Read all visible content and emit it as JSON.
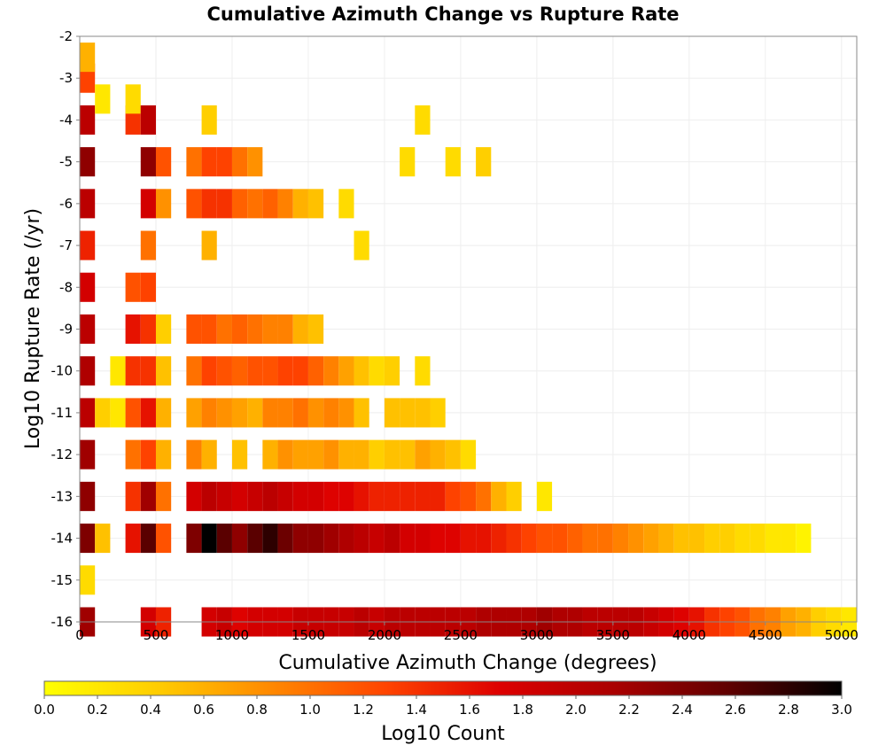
{
  "chart_data": {
    "type": "heatmap",
    "title": "Cumulative Azimuth Change vs Rupture Rate",
    "xlabel": "Cumulative Azimuth Change (degrees)",
    "ylabel": "Log10 Rupture Rate (/yr)",
    "xlim": [
      0,
      5100
    ],
    "ylim": [
      -16,
      -2
    ],
    "x_ticks": [
      "0",
      "500",
      "1000",
      "1500",
      "2000",
      "2500",
      "3000",
      "3500",
      "4000",
      "4500",
      "5000"
    ],
    "y_ticks": [
      "-2",
      "-3",
      "-4",
      "-5",
      "-6",
      "-7",
      "-8",
      "-9",
      "-10",
      "-11",
      "-12",
      "-13",
      "-14",
      "-15",
      "-16"
    ],
    "grid": true,
    "colorbar": {
      "label": "Log10 Count",
      "range": [
        0.0,
        3.0
      ],
      "ticks": [
        "0.0",
        "0.2",
        "0.4",
        "0.6",
        "0.8",
        "1.0",
        "1.2",
        "1.4",
        "1.6",
        "1.8",
        "2.0",
        "2.2",
        "2.4",
        "2.6",
        "2.8",
        "3.0"
      ],
      "colors": [
        "#ffff00",
        "#ffcc00",
        "#ff8800",
        "#ff4400",
        "#dd0000",
        "#aa0000",
        "#600000",
        "#000000"
      ]
    },
    "cells": [
      [
        0,
        -14,
        2.4
      ],
      [
        0,
        -13,
        2.3
      ],
      [
        0,
        -12,
        2.2
      ],
      [
        0,
        -11,
        2.0
      ],
      [
        0,
        -10,
        2.1
      ],
      [
        0,
        -9,
        2.0
      ],
      [
        0,
        -8,
        1.8
      ],
      [
        0,
        -7,
        1.5
      ],
      [
        0,
        -6,
        2.0
      ],
      [
        0,
        -5,
        2.3
      ],
      [
        0,
        -4,
        2.0
      ],
      [
        0,
        -3,
        1.3
      ],
      [
        0,
        -2.5,
        0.6
      ],
      [
        0,
        -16,
        2.2
      ],
      [
        0,
        -15,
        0.3
      ],
      [
        100,
        -14,
        0.5
      ],
      [
        100,
        -11,
        0.4
      ],
      [
        100,
        -3.5,
        0.2
      ],
      [
        200,
        -10,
        0.2
      ],
      [
        200,
        -11,
        0.2
      ],
      [
        300,
        -14,
        1.6
      ],
      [
        300,
        -13,
        1.4
      ],
      [
        300,
        -12,
        1.0
      ],
      [
        300,
        -11,
        1.2
      ],
      [
        300,
        -10,
        1.4
      ],
      [
        300,
        -9,
        1.6
      ],
      [
        300,
        -8,
        1.2
      ],
      [
        300,
        -4,
        1.4
      ],
      [
        300,
        -3.5,
        0.3
      ],
      [
        400,
        -14,
        2.6
      ],
      [
        400,
        -13,
        2.2
      ],
      [
        400,
        -12,
        1.3
      ],
      [
        400,
        -11,
        1.6
      ],
      [
        400,
        -10,
        1.4
      ],
      [
        400,
        -9,
        1.4
      ],
      [
        400,
        -8,
        1.3
      ],
      [
        400,
        -7,
        1.0
      ],
      [
        400,
        -6,
        1.8
      ],
      [
        400,
        -5,
        2.3
      ],
      [
        400,
        -4,
        2.0
      ],
      [
        400,
        -16,
        1.8
      ],
      [
        500,
        -14,
        1.2
      ],
      [
        500,
        -13,
        1.0
      ],
      [
        500,
        -12,
        0.6
      ],
      [
        500,
        -11,
        0.6
      ],
      [
        500,
        -10,
        0.5
      ],
      [
        500,
        -9,
        0.4
      ],
      [
        500,
        -6,
        0.8
      ],
      [
        500,
        -5,
        1.2
      ],
      [
        500,
        -16,
        1.5
      ],
      [
        700,
        -14,
        2.4
      ],
      [
        700,
        -13,
        1.8
      ],
      [
        700,
        -12,
        0.9
      ],
      [
        700,
        -11,
        0.7
      ],
      [
        700,
        -10,
        1.0
      ],
      [
        700,
        -9,
        1.2
      ],
      [
        700,
        -6,
        1.2
      ],
      [
        700,
        -5,
        1.0
      ],
      [
        800,
        -14,
        3.0
      ],
      [
        800,
        -13,
        2.0
      ],
      [
        800,
        -12,
        0.6
      ],
      [
        800,
        -11,
        0.9
      ],
      [
        800,
        -10,
        1.3
      ],
      [
        800,
        -9,
        1.2
      ],
      [
        800,
        -7,
        0.6
      ],
      [
        800,
        -6,
        1.4
      ],
      [
        800,
        -5,
        1.3
      ],
      [
        800,
        -4,
        0.4
      ],
      [
        800,
        -16,
        1.8
      ],
      [
        900,
        -14,
        2.6
      ],
      [
        900,
        -13,
        1.9
      ],
      [
        900,
        -11,
        0.8
      ],
      [
        900,
        -10,
        1.2
      ],
      [
        900,
        -9,
        1.0
      ],
      [
        900,
        -6,
        1.4
      ],
      [
        900,
        -5,
        1.3
      ],
      [
        900,
        -16,
        1.9
      ],
      [
        1000,
        -14,
        2.3
      ],
      [
        1000,
        -13,
        1.8
      ],
      [
        1000,
        -12,
        0.5
      ],
      [
        1000,
        -11,
        0.7
      ],
      [
        1000,
        -10,
        1.1
      ],
      [
        1000,
        -9,
        1.1
      ],
      [
        1000,
        -6,
        1.1
      ],
      [
        1000,
        -5,
        1.0
      ],
      [
        1000,
        -16,
        1.7
      ],
      [
        1100,
        -14,
        2.6
      ],
      [
        1100,
        -13,
        1.9
      ],
      [
        1100,
        -11,
        0.6
      ],
      [
        1100,
        -10,
        1.2
      ],
      [
        1100,
        -9,
        1.0
      ],
      [
        1100,
        -6,
        1.0
      ],
      [
        1100,
        -5,
        0.8
      ],
      [
        1100,
        -16,
        1.8
      ],
      [
        1200,
        -14,
        2.8
      ],
      [
        1200,
        -13,
        2.0
      ],
      [
        1200,
        -12,
        0.6
      ],
      [
        1200,
        -11,
        0.9
      ],
      [
        1200,
        -10,
        1.2
      ],
      [
        1200,
        -9,
        0.9
      ],
      [
        1200,
        -6,
        1.1
      ],
      [
        1200,
        -16,
        1.8
      ],
      [
        1300,
        -14,
        2.5
      ],
      [
        1300,
        -13,
        1.9
      ],
      [
        1300,
        -12,
        0.8
      ],
      [
        1300,
        -11,
        0.9
      ],
      [
        1300,
        -10,
        1.3
      ],
      [
        1300,
        -9,
        0.9
      ],
      [
        1300,
        -6,
        0.9
      ],
      [
        1300,
        -16,
        1.8
      ],
      [
        1400,
        -14,
        2.3
      ],
      [
        1400,
        -13,
        1.8
      ],
      [
        1400,
        -12,
        0.7
      ],
      [
        1400,
        -11,
        1.0
      ],
      [
        1400,
        -10,
        1.3
      ],
      [
        1400,
        -9,
        0.6
      ],
      [
        1400,
        -6,
        0.6
      ],
      [
        1400,
        -16,
        1.9
      ],
      [
        1500,
        -14,
        2.3
      ],
      [
        1500,
        -13,
        1.8
      ],
      [
        1500,
        -12,
        0.7
      ],
      [
        1500,
        -11,
        0.8
      ],
      [
        1500,
        -10,
        1.1
      ],
      [
        1500,
        -9,
        0.5
      ],
      [
        1500,
        -6,
        0.5
      ],
      [
        1500,
        -16,
        1.9
      ],
      [
        1600,
        -14,
        2.2
      ],
      [
        1600,
        -13,
        1.7
      ],
      [
        1600,
        -12,
        0.8
      ],
      [
        1600,
        -11,
        0.9
      ],
      [
        1600,
        -10,
        0.9
      ],
      [
        1600,
        -16,
        1.9
      ],
      [
        1700,
        -14,
        2.1
      ],
      [
        1700,
        -13,
        1.7
      ],
      [
        1700,
        -12,
        0.6
      ],
      [
        1700,
        -11,
        0.8
      ],
      [
        1700,
        -10,
        0.7
      ],
      [
        1700,
        -6,
        0.3
      ],
      [
        1700,
        -16,
        1.9
      ],
      [
        1800,
        -14,
        2.0
      ],
      [
        1800,
        -13,
        1.6
      ],
      [
        1800,
        -12,
        0.6
      ],
      [
        1800,
        -11,
        0.5
      ],
      [
        1800,
        -10,
        0.5
      ],
      [
        1800,
        -7,
        0.3
      ],
      [
        1800,
        -16,
        2.0
      ],
      [
        1900,
        -14,
        1.9
      ],
      [
        1900,
        -13,
        1.5
      ],
      [
        1900,
        -12,
        0.4
      ],
      [
        1900,
        -10,
        0.3
      ],
      [
        1900,
        -16,
        1.9
      ],
      [
        2000,
        -14,
        2.0
      ],
      [
        2000,
        -13,
        1.5
      ],
      [
        2000,
        -12,
        0.5
      ],
      [
        2000,
        -11,
        0.5
      ],
      [
        2000,
        -10,
        0.4
      ],
      [
        2000,
        -16,
        2.0
      ],
      [
        2100,
        -14,
        1.8
      ],
      [
        2100,
        -13,
        1.5
      ],
      [
        2100,
        -12,
        0.5
      ],
      [
        2100,
        -11,
        0.5
      ],
      [
        2100,
        -5,
        0.3
      ],
      [
        2100,
        -16,
        2.0
      ],
      [
        2200,
        -14,
        1.8
      ],
      [
        2200,
        -13,
        1.5
      ],
      [
        2200,
        -12,
        0.7
      ],
      [
        2200,
        -11,
        0.5
      ],
      [
        2200,
        -10,
        0.3
      ],
      [
        2200,
        -4,
        0.3
      ],
      [
        2200,
        -16,
        2.0
      ],
      [
        2300,
        -14,
        1.7
      ],
      [
        2300,
        -13,
        1.5
      ],
      [
        2300,
        -12,
        0.6
      ],
      [
        2300,
        -11,
        0.4
      ],
      [
        2300,
        -16,
        2.0
      ],
      [
        2400,
        -14,
        1.7
      ],
      [
        2400,
        -13,
        1.3
      ],
      [
        2400,
        -12,
        0.5
      ],
      [
        2400,
        -5,
        0.3
      ],
      [
        2400,
        -16,
        2.0
      ],
      [
        2500,
        -14,
        1.6
      ],
      [
        2500,
        -13,
        1.2
      ],
      [
        2500,
        -12,
        0.3
      ],
      [
        2500,
        -16,
        2.0
      ],
      [
        2600,
        -14,
        1.6
      ],
      [
        2600,
        -13,
        1.0
      ],
      [
        2600,
        -5,
        0.4
      ],
      [
        2600,
        -16,
        2.1
      ],
      [
        2700,
        -14,
        1.5
      ],
      [
        2700,
        -13,
        0.6
      ],
      [
        2700,
        -16,
        2.1
      ],
      [
        2800,
        -14,
        1.4
      ],
      [
        2800,
        -13,
        0.4
      ],
      [
        2800,
        -16,
        2.1
      ],
      [
        2900,
        -14,
        1.3
      ],
      [
        2900,
        -16,
        2.1
      ],
      [
        3000,
        -14,
        1.2
      ],
      [
        3000,
        -13,
        0.2
      ],
      [
        3000,
        -16,
        2.2
      ],
      [
        3100,
        -14,
        1.2
      ],
      [
        3100,
        -16,
        2.1
      ],
      [
        3200,
        -14,
        1.1
      ],
      [
        3200,
        -16,
        2.1
      ],
      [
        3300,
        -14,
        1.0
      ],
      [
        3300,
        -16,
        2.0
      ],
      [
        3400,
        -14,
        1.0
      ],
      [
        3400,
        -16,
        2.0
      ],
      [
        3500,
        -14,
        0.9
      ],
      [
        3500,
        -16,
        2.0
      ],
      [
        3600,
        -14,
        0.8
      ],
      [
        3600,
        -16,
        2.0
      ],
      [
        3700,
        -14,
        0.7
      ],
      [
        3700,
        -16,
        1.9
      ],
      [
        3800,
        -14,
        0.6
      ],
      [
        3800,
        -16,
        1.8
      ],
      [
        3900,
        -14,
        0.5
      ],
      [
        3900,
        -16,
        1.7
      ],
      [
        4000,
        -14,
        0.5
      ],
      [
        4000,
        -16,
        1.6
      ],
      [
        4100,
        -14,
        0.4
      ],
      [
        4100,
        -16,
        1.4
      ],
      [
        4200,
        -14,
        0.4
      ],
      [
        4200,
        -16,
        1.3
      ],
      [
        4300,
        -14,
        0.3
      ],
      [
        4300,
        -16,
        1.2
      ],
      [
        4400,
        -14,
        0.3
      ],
      [
        4400,
        -16,
        1.0
      ],
      [
        4500,
        -14,
        0.2
      ],
      [
        4500,
        -16,
        0.9
      ],
      [
        4600,
        -14,
        0.2
      ],
      [
        4600,
        -16,
        0.7
      ],
      [
        4700,
        -14,
        0.1
      ],
      [
        4700,
        -16,
        0.6
      ],
      [
        4800,
        -16,
        0.4
      ],
      [
        4900,
        -16,
        0.3
      ],
      [
        5000,
        -16,
        0.2
      ]
    ]
  }
}
